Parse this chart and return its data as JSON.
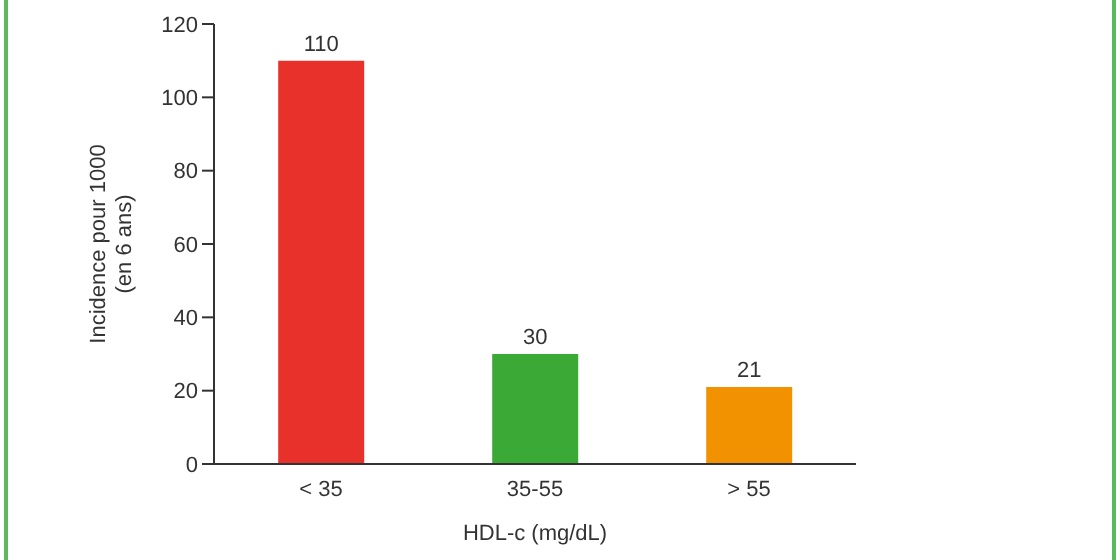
{
  "chart_data": {
    "type": "bar",
    "categories": [
      "< 35",
      "35-55",
      "> 55"
    ],
    "values": [
      110,
      30,
      21
    ],
    "colors": [
      "#e8312a",
      "#3aa935",
      "#f39200"
    ],
    "xlabel": "HDL-c (mg/dL)",
    "ylabel": "Incidence pour 1000\n(en 6 ans)",
    "ylim": [
      0,
      120
    ],
    "yticks": [
      0,
      20,
      40,
      60,
      80,
      100,
      120
    ],
    "grid": false,
    "data_labels": true
  }
}
